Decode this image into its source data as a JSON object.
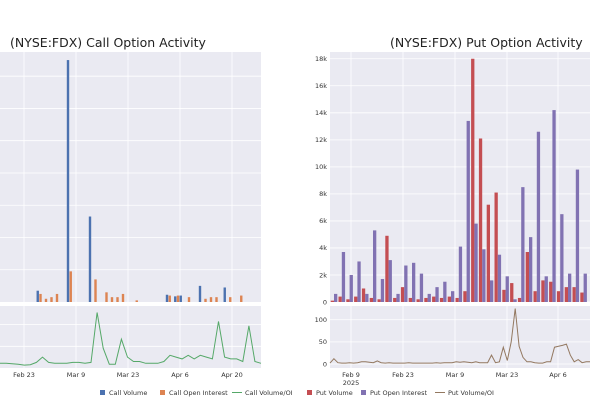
{
  "chart_data": [
    {
      "type": "bar",
      "title": "(NYSE:FDX) Call Option Activity",
      "x_tick_labels": [
        "Feb 23",
        "Mar 9",
        "Mar 23",
        "Apr 6",
        "Apr 20"
      ],
      "series": [
        {
          "name": "Call Volume",
          "color": "#4c72b0",
          "values": [
            0,
            0,
            0,
            0,
            0,
            0,
            0,
            0,
            0,
            0,
            0,
            0,
            0,
            700,
            0,
            0,
            0,
            0,
            0,
            0,
            0,
            0,
            0,
            0,
            15000,
            0,
            0,
            0,
            0,
            0,
            0,
            0,
            5300,
            0,
            0,
            0,
            0,
            0,
            0,
            0,
            0,
            0,
            0,
            0,
            0,
            0,
            0,
            0,
            0,
            0,
            0,
            0,
            0,
            0,
            0,
            0,
            0,
            0,
            0,
            0,
            450,
            0,
            0,
            350,
            0,
            400,
            0,
            0,
            0,
            0,
            0,
            0,
            1000,
            0,
            0,
            0,
            0,
            0,
            0,
            0,
            0,
            900,
            0,
            0,
            0,
            0,
            0,
            0,
            0,
            0,
            0,
            0
          ]
        },
        {
          "name": "Call Open Interest",
          "color": "#dd8452",
          "values": [
            0,
            0,
            0,
            0,
            0,
            0,
            0,
            0,
            0,
            0,
            0,
            0,
            0,
            0,
            500,
            0,
            200,
            0,
            300,
            0,
            500,
            0,
            0,
            0,
            0,
            1900,
            0,
            0,
            0,
            0,
            0,
            0,
            0,
            0,
            1400,
            0,
            0,
            0,
            600,
            0,
            300,
            0,
            300,
            0,
            500,
            0,
            0,
            0,
            0,
            100,
            0,
            0,
            0,
            0,
            0,
            0,
            0,
            0,
            0,
            0,
            0,
            400,
            0,
            0,
            400,
            0,
            0,
            0,
            300,
            0,
            0,
            0,
            0,
            0,
            200,
            0,
            300,
            0,
            300,
            0,
            0,
            0,
            0,
            300,
            0,
            0,
            0,
            400,
            0,
            0,
            0,
            0
          ]
        }
      ]
    },
    {
      "type": "line",
      "series": [
        {
          "name": "Call Volume/OI",
          "color": "#55a868",
          "values": [
            3,
            3,
            2.5,
            2,
            1,
            1.5,
            4,
            10,
            4,
            3,
            3,
            3,
            4,
            4,
            3,
            4,
            60,
            20,
            2,
            2,
            30,
            10,
            5,
            5,
            3,
            3,
            3,
            5,
            12,
            10,
            8,
            12,
            8,
            12,
            10,
            8,
            50,
            10,
            8,
            8,
            5,
            45,
            5,
            3
          ]
        }
      ]
    },
    {
      "type": "bar",
      "title": "(NYSE:FDX) Put Option Activity",
      "x_tick_labels": [
        "Feb 9",
        "Feb 23",
        "Mar 9",
        "Mar 23",
        "Apr 6"
      ],
      "year_label": "2025",
      "y_ticks": [
        "0",
        "2k",
        "4k",
        "6k",
        "8k",
        "10k",
        "12k",
        "14k",
        "16k",
        "18k"
      ],
      "ylim": [
        0,
        18500
      ],
      "series": [
        {
          "name": "Put Volume",
          "color": "#c44e52",
          "values": [
            100,
            400,
            200,
            400,
            1000,
            300,
            200,
            4900,
            300,
            1100,
            300,
            200,
            300,
            400,
            300,
            400,
            300,
            800,
            18000,
            12100,
            7200,
            8100,
            900,
            1400,
            300,
            3700,
            800,
            1600,
            1500,
            800,
            1100,
            1100,
            700
          ]
        },
        {
          "name": "Put Open Interest",
          "color": "#8172b2",
          "values": [
            600,
            3700,
            2000,
            3000,
            600,
            5300,
            1700,
            3100,
            600,
            2700,
            2900,
            2100,
            600,
            1100,
            1500,
            800,
            4100,
            13400,
            5800,
            3900,
            1600,
            3500,
            1900,
            200,
            8500,
            4800,
            12600,
            1900,
            14200,
            6500,
            2100,
            9800,
            2100
          ]
        }
      ]
    },
    {
      "type": "line",
      "y_ticks": [
        "0",
        "50",
        "100"
      ],
      "ylim": [
        0,
        140
      ],
      "series": [
        {
          "name": "Put Volume/OI",
          "color": "#937860",
          "values": [
            2,
            12,
            3,
            2,
            2,
            3,
            2,
            3,
            5,
            5,
            4,
            3,
            7,
            3,
            2,
            3,
            2,
            2,
            2,
            2,
            3,
            2,
            2,
            2,
            2,
            2,
            2,
            3,
            2,
            3,
            3,
            3,
            5,
            4,
            5,
            4,
            3,
            5,
            3,
            3,
            3,
            20,
            3,
            5,
            38,
            8,
            50,
            125,
            40,
            15,
            5,
            5,
            3,
            2,
            2,
            5,
            5,
            38,
            40,
            42,
            45,
            20,
            5,
            10,
            3,
            5,
            5
          ]
        }
      ]
    }
  ],
  "legend": [
    {
      "label": "Call Volume",
      "kind": "swatch",
      "color": "#4c72b0"
    },
    {
      "label": "Call Open Interest",
      "kind": "swatch",
      "color": "#dd8452"
    },
    {
      "label": "Call Volume/OI",
      "kind": "line",
      "color": "#55a868"
    },
    {
      "label": "Put Volume",
      "kind": "swatch",
      "color": "#c44e52"
    },
    {
      "label": "Put Open Interest",
      "kind": "swatch",
      "color": "#8172b2"
    },
    {
      "label": "Put Volume/OI",
      "kind": "line",
      "color": "#937860"
    }
  ]
}
